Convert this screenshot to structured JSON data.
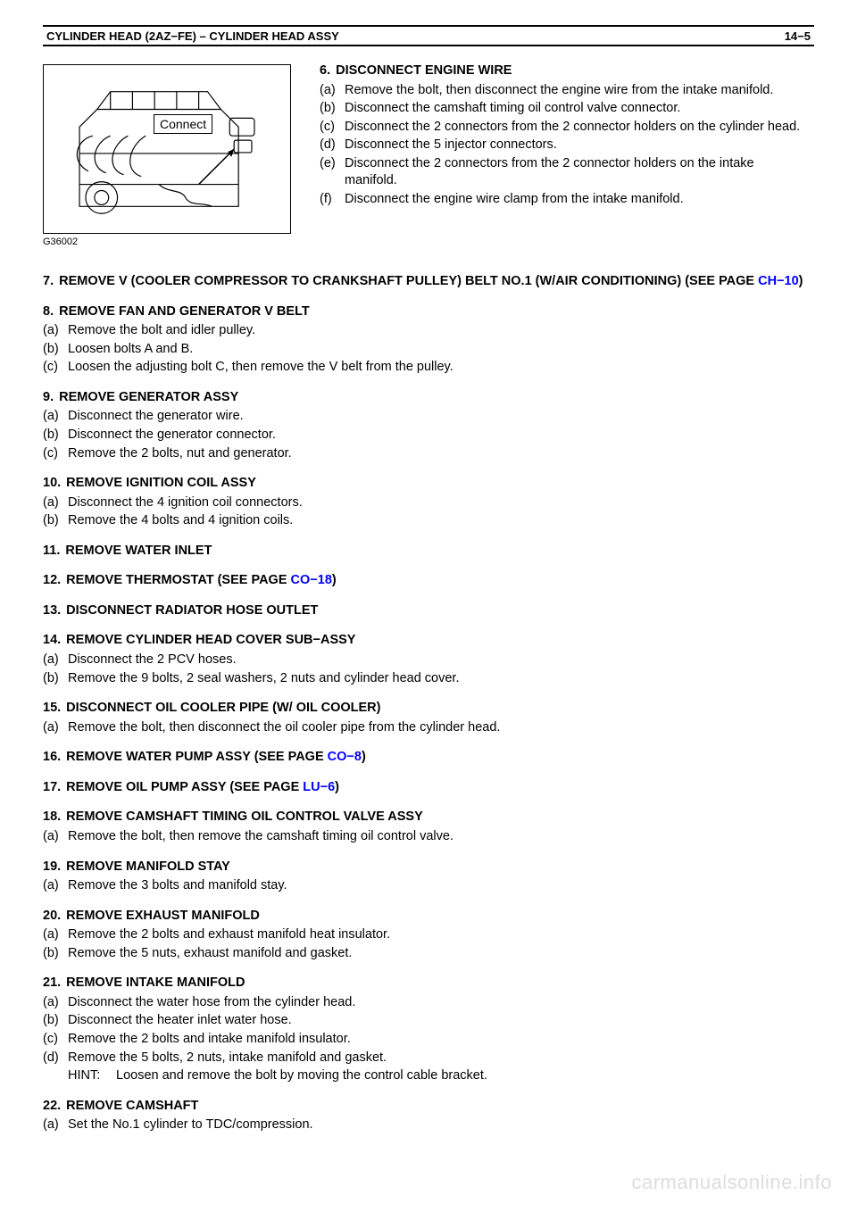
{
  "header": {
    "left": "CYLINDER HEAD (2AZ−FE)   –   CYLINDER HEAD ASSY",
    "right": "14−5"
  },
  "diagram": {
    "caption": "G36002",
    "connect_label": "Connect"
  },
  "steps": [
    {
      "num": "6.",
      "title": "DISCONNECT ENGINE WIRE",
      "items": [
        {
          "marker": "(a)",
          "text": "Remove the bolt, then disconnect the engine wire from the intake manifold."
        },
        {
          "marker": "(b)",
          "text": "Disconnect the camshaft timing oil control valve connector."
        },
        {
          "marker": "(c)",
          "text": "Disconnect the 2 connectors from the 2 connector holders on the cylinder head."
        },
        {
          "marker": "(d)",
          "text": "Disconnect the 5 injector connectors."
        },
        {
          "marker": "(e)",
          "text": "Disconnect the 2 connectors from the 2 connector holders on the intake manifold."
        },
        {
          "marker": "(f)",
          "text": "Disconnect the engine wire clamp from the intake manifold."
        }
      ]
    },
    {
      "num": "7.",
      "title": "REMOVE V (COOLER COMPRESSOR TO CRANKSHAFT PULLEY) BELT NO.1 (W/AIR CONDITIONING) (SEE PAGE",
      "link": "CH−10",
      "after_link": ")"
    },
    {
      "num": "8.",
      "title": "REMOVE FAN AND GENERATOR V BELT",
      "items": [
        {
          "marker": "(a)",
          "text": "Remove the bolt and idler pulley."
        },
        {
          "marker": "(b)",
          "text": "Loosen bolts A and B."
        },
        {
          "marker": "(c)",
          "text": "Loosen the adjusting bolt C, then remove the V belt from the pulley."
        }
      ]
    },
    {
      "num": "9.",
      "title": "REMOVE GENERATOR ASSY",
      "items": [
        {
          "marker": "(a)",
          "text": "Disconnect the generator wire."
        },
        {
          "marker": "(b)",
          "text": "Disconnect the generator connector."
        },
        {
          "marker": "(c)",
          "text": "Remove the 2 bolts, nut and generator."
        }
      ]
    },
    {
      "num": "10.",
      "title": "REMOVE IGNITION COIL ASSY",
      "items": [
        {
          "marker": "(a)",
          "text": "Disconnect the 4 ignition coil connectors."
        },
        {
          "marker": "(b)",
          "text": "Remove the 4 bolts and 4 ignition coils."
        }
      ]
    },
    {
      "num": "11.",
      "title": "REMOVE WATER INLET"
    },
    {
      "num": "12.",
      "title": "REMOVE THERMOSTAT (SEE PAGE",
      "link": "CO−18",
      "after_link": ")"
    },
    {
      "num": "13.",
      "title": "DISCONNECT RADIATOR HOSE OUTLET"
    },
    {
      "num": "14.",
      "title": "REMOVE CYLINDER HEAD COVER SUB−ASSY",
      "items": [
        {
          "marker": "(a)",
          "text": "Disconnect the 2 PCV hoses."
        },
        {
          "marker": "(b)",
          "text": "Remove the 9 bolts, 2 seal washers, 2 nuts and cylinder head cover."
        }
      ]
    },
    {
      "num": "15.",
      "title": "DISCONNECT OIL COOLER PIPE (W/ OIL COOLER)",
      "items": [
        {
          "marker": "(a)",
          "text": "Remove the bolt, then disconnect the oil cooler pipe from the cylinder head."
        }
      ]
    },
    {
      "num": "16.",
      "title": "REMOVE WATER PUMP ASSY (SEE PAGE",
      "link": "CO−8",
      "after_link": ")"
    },
    {
      "num": "17.",
      "title": "REMOVE OIL PUMP ASSY (SEE PAGE",
      "link": "LU−6",
      "after_link": ")"
    },
    {
      "num": "18.",
      "title": "REMOVE CAMSHAFT TIMING OIL CONTROL VALVE ASSY",
      "items": [
        {
          "marker": "(a)",
          "text": "Remove the bolt, then remove the camshaft timing oil control valve."
        }
      ]
    },
    {
      "num": "19.",
      "title": "REMOVE MANIFOLD STAY",
      "items": [
        {
          "marker": "(a)",
          "text": "Remove the 3 bolts and manifold stay."
        }
      ]
    },
    {
      "num": "20.",
      "title": "REMOVE EXHAUST MANIFOLD",
      "items": [
        {
          "marker": "(a)",
          "text": "Remove the 2 bolts and exhaust manifold heat insulator."
        },
        {
          "marker": "(b)",
          "text": "Remove the 5 nuts, exhaust manifold and gasket."
        }
      ]
    },
    {
      "num": "21.",
      "title": "REMOVE INTAKE MANIFOLD",
      "items": [
        {
          "marker": "(a)",
          "text": "Disconnect the water hose from the cylinder head."
        },
        {
          "marker": "(b)",
          "text": "Disconnect the heater inlet water hose."
        },
        {
          "marker": "(c)",
          "text": "Remove the 2 bolts and intake manifold insulator."
        },
        {
          "marker": "(d)",
          "text": "Remove the 5 bolts, 2 nuts, intake manifold and gasket."
        },
        {
          "marker": "",
          "text": "",
          "hint": true,
          "hint_label": "HINT:",
          "hint_text": "Loosen and remove the bolt by moving the control cable bracket."
        }
      ]
    },
    {
      "num": "22.",
      "title": "REMOVE CAMSHAFT",
      "items": [
        {
          "marker": "(a)",
          "text": "Set the No.1 cylinder to TDC/compression."
        }
      ]
    }
  ],
  "watermark": "carmanualsonline.info",
  "colors": {
    "link": "#0000ff",
    "text": "#000000",
    "watermark": "#dddddd"
  }
}
